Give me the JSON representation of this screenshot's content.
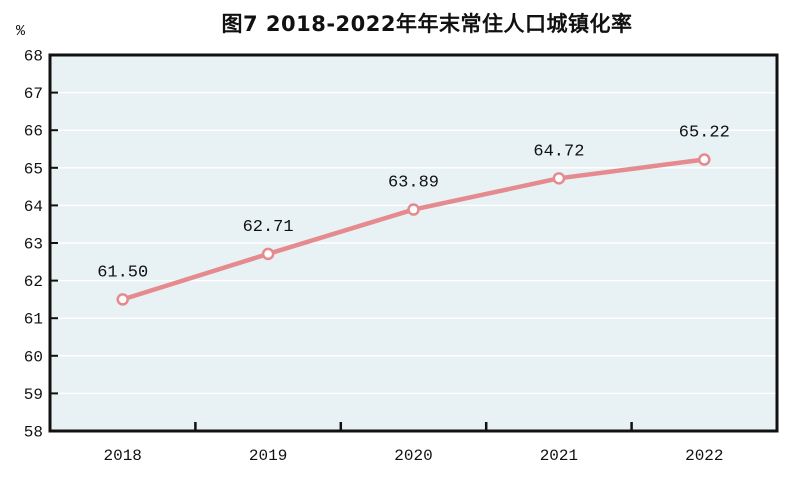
{
  "chart_data": {
    "type": "line",
    "title": "图7  2018-2022年年末常住人口城镇化率",
    "unit_label": "%",
    "categories": [
      "2018",
      "2019",
      "2020",
      "2021",
      "2022"
    ],
    "series": [
      {
        "name": "年末常住人口城镇化率",
        "values": [
          61.5,
          62.71,
          63.89,
          64.72,
          65.22
        ],
        "data_labels": [
          "61.50",
          "62.71",
          "63.89",
          "64.72",
          "65.22"
        ]
      }
    ],
    "ylim": [
      58,
      68
    ],
    "yticks": [
      58,
      59,
      60,
      61,
      62,
      63,
      64,
      65,
      66,
      67,
      68
    ],
    "grid": "horizontal",
    "legend": "none",
    "colors": {
      "line": "#e58a8e",
      "marker_fill": "#ffffff",
      "marker_stroke": "#e58a8e",
      "plot_background": "#e8f1f4",
      "gridline": "#ffffff",
      "axis": "#111111",
      "text": "#111111"
    }
  }
}
